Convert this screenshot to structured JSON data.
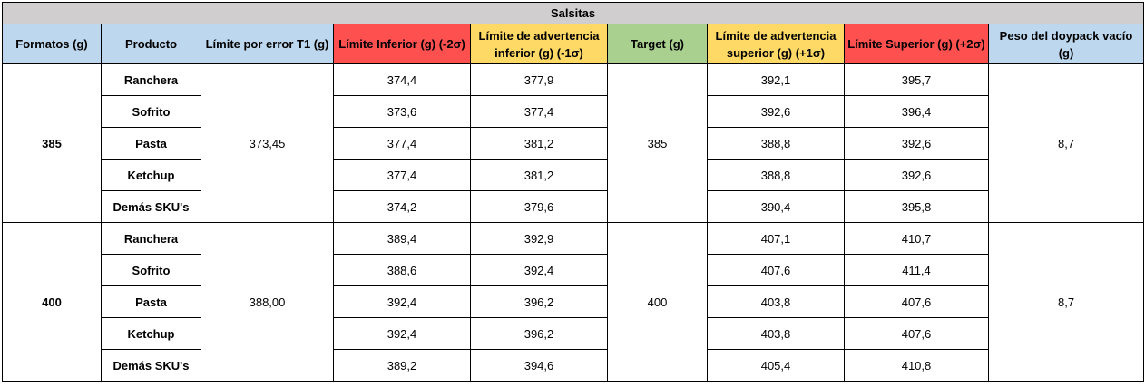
{
  "title": "Salsitas",
  "headers": [
    "Formatos (g)",
    "Producto",
    "Límite por error T1 (g)",
    "Límite Inferior (g) (-2σ)",
    "Límite de advertencia inferior (g) (-1σ)",
    "Target (g)",
    "Límite de advertencia superior (g) (+1σ)",
    "Límite Superior (g) (+2σ)",
    "Peso del doypack vacío (g)"
  ],
  "header_colors": {
    "blue": "#bdd7ee",
    "red": "#ff5050",
    "yellow": "#ffd966",
    "green": "#a9d08e",
    "title_gray": "#d0cece"
  },
  "groups": [
    {
      "formato": "385",
      "limite_t1": "373,45",
      "target": "385",
      "peso_doypack": "8,7",
      "rows": [
        {
          "producto": "Ranchera",
          "li": "374,4",
          "lai": "377,9",
          "las": "392,1",
          "ls": "395,7"
        },
        {
          "producto": "Sofrito",
          "li": "373,6",
          "lai": "377,4",
          "las": "392,6",
          "ls": "396,4"
        },
        {
          "producto": "Pasta",
          "li": "377,4",
          "lai": "381,2",
          "las": "388,8",
          "ls": "392,6"
        },
        {
          "producto": "Ketchup",
          "li": "377,4",
          "lai": "381,2",
          "las": "388,8",
          "ls": "392,6"
        },
        {
          "producto": "Demás SKU's",
          "li": "374,2",
          "lai": "379,6",
          "las": "390,4",
          "ls": "395,8"
        }
      ]
    },
    {
      "formato": "400",
      "limite_t1": "388,00",
      "target": "400",
      "peso_doypack": "8,7",
      "rows": [
        {
          "producto": "Ranchera",
          "li": "389,4",
          "lai": "392,9",
          "las": "407,1",
          "ls": "410,7"
        },
        {
          "producto": "Sofrito",
          "li": "388,6",
          "lai": "392,4",
          "las": "407,6",
          "ls": "411,4"
        },
        {
          "producto": "Pasta",
          "li": "392,4",
          "lai": "396,2",
          "las": "403,8",
          "ls": "407,6"
        },
        {
          "producto": "Ketchup",
          "li": "392,4",
          "lai": "396,2",
          "las": "403,8",
          "ls": "407,6"
        },
        {
          "producto": "Demás SKU's",
          "li": "389,2",
          "lai": "394,6",
          "las": "405,4",
          "ls": "410,8"
        }
      ]
    }
  ]
}
